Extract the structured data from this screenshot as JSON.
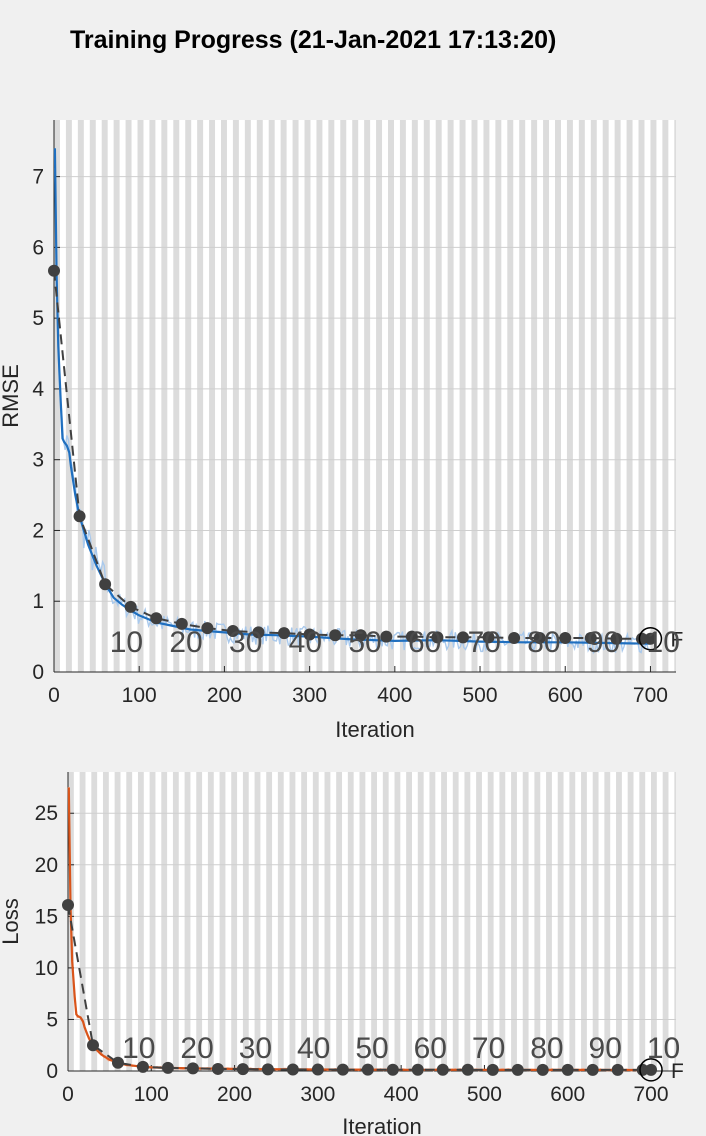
{
  "title": "Training Progress (21-Jan-2021 17:13:20)",
  "chart_data": [
    {
      "type": "line",
      "name": "rmse-plot",
      "xlabel": "Iteration",
      "ylabel": "RMSE",
      "xlim": [
        0,
        730
      ],
      "ylim": [
        0,
        7.8
      ],
      "xticks": [
        0,
        100,
        200,
        300,
        400,
        500,
        600,
        700
      ],
      "yticks": [
        0,
        1,
        2,
        3,
        4,
        5,
        6,
        7
      ],
      "grid": true,
      "epoch_labels": [
        "10",
        "20",
        "30",
        "40",
        "50",
        "60",
        "70",
        "80",
        "90",
        "10"
      ],
      "epoch_label_x": [
        85,
        155,
        225,
        295,
        365,
        435,
        505,
        575,
        645,
        715
      ],
      "final_marker_label": "F",
      "colors": {
        "raw": "#a9c9ec",
        "smoothed": "#1f6fbf",
        "validation": "#404040",
        "band": "#dcdcdc"
      },
      "series": [
        {
          "role": "smoothed-training",
          "x": [
            1,
            3,
            5,
            8,
            10,
            12,
            15,
            18,
            20,
            25,
            30,
            40,
            50,
            60,
            70,
            80,
            90,
            100,
            110,
            120,
            140,
            160,
            180,
            200,
            230,
            260,
            300,
            350,
            400,
            450,
            500,
            550,
            600,
            650,
            700
          ],
          "y": [
            7.4,
            5.6,
            4.6,
            3.8,
            3.3,
            3.25,
            3.2,
            3.1,
            2.9,
            2.5,
            2.2,
            1.8,
            1.5,
            1.25,
            1.05,
            0.95,
            0.87,
            0.8,
            0.75,
            0.7,
            0.65,
            0.6,
            0.58,
            0.56,
            0.53,
            0.52,
            0.5,
            0.46,
            0.44,
            0.45,
            0.43,
            0.42,
            0.42,
            0.41,
            0.4
          ]
        },
        {
          "role": "validation",
          "x": [
            0,
            30,
            60,
            90,
            120,
            150,
            180,
            210,
            240,
            270,
            300,
            330,
            360,
            390,
            420,
            450,
            480,
            510,
            540,
            570,
            600,
            630,
            660,
            690,
            700
          ],
          "y": [
            5.67,
            2.2,
            1.24,
            0.92,
            0.76,
            0.68,
            0.62,
            0.58,
            0.56,
            0.55,
            0.53,
            0.52,
            0.52,
            0.5,
            0.5,
            0.49,
            0.49,
            0.49,
            0.48,
            0.48,
            0.48,
            0.48,
            0.47,
            0.47,
            0.47
          ]
        }
      ]
    },
    {
      "type": "line",
      "name": "loss-plot",
      "xlabel": "Iteration",
      "ylabel": "Loss",
      "xlim": [
        0,
        730
      ],
      "ylim": [
        0,
        29
      ],
      "xticks": [
        0,
        100,
        200,
        300,
        400,
        500,
        600,
        700
      ],
      "yticks": [
        0,
        5,
        10,
        15,
        20,
        25
      ],
      "grid": true,
      "epoch_labels": [
        "10",
        "20",
        "30",
        "40",
        "50",
        "60",
        "70",
        "80",
        "90",
        "10"
      ],
      "epoch_label_x": [
        85,
        155,
        225,
        295,
        365,
        435,
        505,
        575,
        645,
        715
      ],
      "final_marker_label": "F",
      "colors": {
        "raw": "#f2b49a",
        "smoothed": "#d9541a",
        "validation": "#404040",
        "band": "#dcdcdc"
      },
      "series": [
        {
          "role": "smoothed-training",
          "x": [
            1,
            3,
            5,
            8,
            10,
            12,
            15,
            18,
            20,
            25,
            30,
            40,
            50,
            60,
            70,
            80,
            90,
            100,
            120,
            150,
            200,
            300,
            400,
            500,
            600,
            700
          ],
          "y": [
            27.5,
            16.0,
            10.6,
            7.2,
            5.5,
            5.3,
            5.2,
            4.8,
            4.2,
            3.2,
            2.4,
            1.6,
            1.1,
            0.8,
            0.6,
            0.5,
            0.4,
            0.35,
            0.3,
            0.25,
            0.2,
            0.15,
            0.12,
            0.12,
            0.11,
            0.1
          ]
        },
        {
          "role": "validation",
          "x": [
            0,
            30,
            60,
            90,
            120,
            150,
            180,
            210,
            240,
            270,
            300,
            330,
            360,
            390,
            420,
            450,
            480,
            510,
            540,
            570,
            600,
            630,
            660,
            690,
            700
          ],
          "y": [
            16.1,
            2.5,
            0.8,
            0.4,
            0.3,
            0.25,
            0.2,
            0.18,
            0.16,
            0.15,
            0.14,
            0.13,
            0.13,
            0.12,
            0.12,
            0.12,
            0.12,
            0.11,
            0.11,
            0.11,
            0.11,
            0.11,
            0.11,
            0.11,
            0.11
          ]
        }
      ]
    }
  ]
}
